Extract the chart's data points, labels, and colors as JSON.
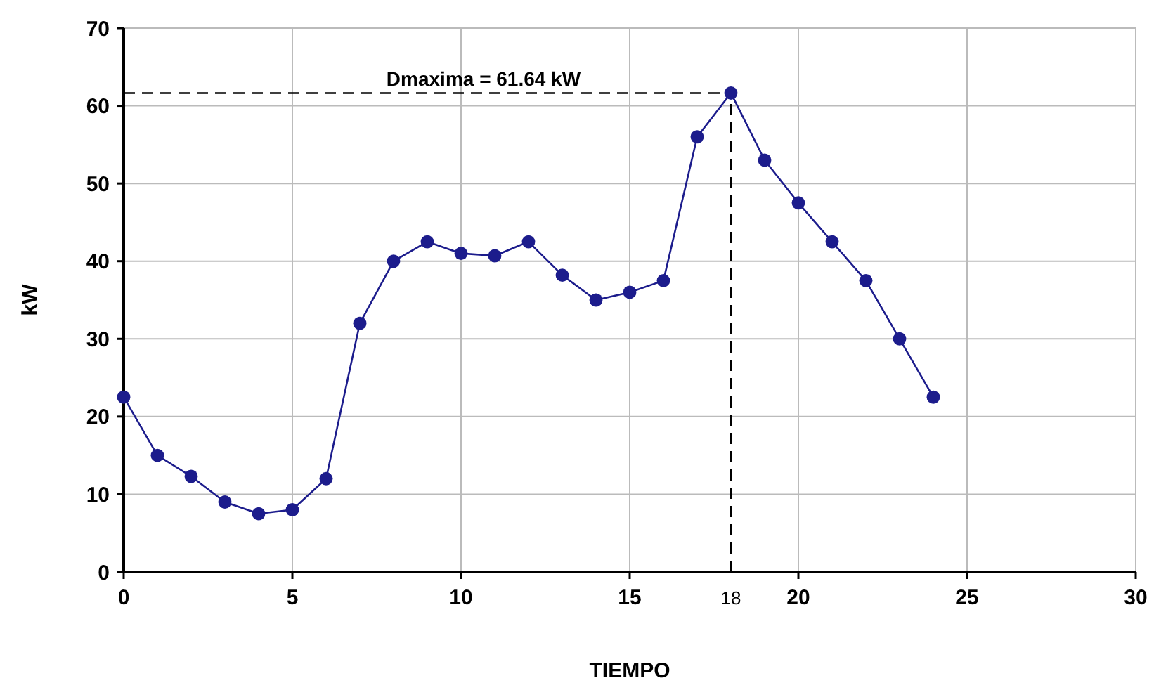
{
  "chart_data": {
    "type": "line",
    "xlabel": "TIEMPO",
    "ylabel": "kW",
    "x": [
      0,
      1,
      2,
      3,
      4,
      5,
      6,
      7,
      8,
      9,
      10,
      11,
      12,
      13,
      14,
      15,
      16,
      17,
      18,
      19,
      20,
      21,
      22,
      23,
      24
    ],
    "series": [
      {
        "color": "#1c1c8c",
        "values": [
          22.5,
          15,
          12.3,
          9,
          7.5,
          8,
          12,
          32,
          40,
          42.5,
          41,
          40.7,
          42.5,
          38.2,
          35,
          36,
          37.5,
          56,
          61.64,
          53,
          47.5,
          42.5,
          37.5,
          30,
          22.5
        ]
      }
    ],
    "xlim": [
      0,
      30
    ],
    "xticks": [
      0,
      5,
      10,
      15,
      20,
      25,
      30
    ],
    "ylim": [
      0,
      70
    ],
    "yticks": [
      0,
      10,
      20,
      30,
      40,
      50,
      60,
      70
    ],
    "ref_lines": [
      {
        "axis": "y",
        "value": 61.64,
        "label": "Dmaxima = 61.64 kW",
        "line_style": "dashed",
        "color": "#000000"
      },
      {
        "axis": "x",
        "value": 18,
        "label": "18",
        "line_style": "dashed",
        "color": "#000000"
      }
    ],
    "grid": true,
    "marker": "circle",
    "line_style": "solid"
  }
}
